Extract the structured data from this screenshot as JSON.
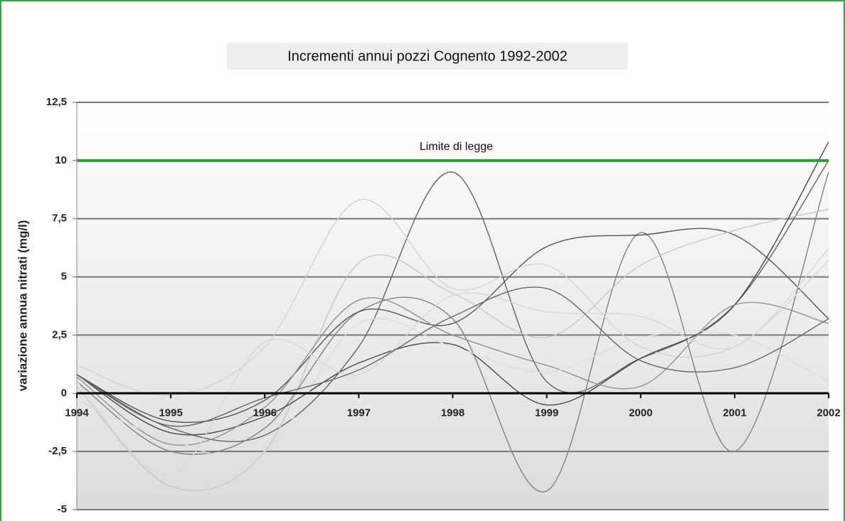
{
  "chart_data": {
    "type": "line",
    "title": "Incrementi annui pozzi Cognento 1992-2002",
    "y_label": "variazione annua nitrati (mg/l)",
    "x": [
      1994,
      1995,
      1996,
      1997,
      1998,
      1999,
      2000,
      2001,
      2002
    ],
    "xlim": [
      1994,
      2002
    ],
    "xticks": [
      1994,
      1995,
      1996,
      1997,
      1998,
      1999,
      2000,
      2001,
      2002
    ],
    "ylim": [
      -5,
      12.5
    ],
    "yticks": [
      {
        "value": -5,
        "label": "-5"
      },
      {
        "value": -2.5,
        "label": "-2,5"
      },
      0,
      {
        "value": 2.5,
        "label": "2,5"
      },
      5,
      {
        "value": 7.5,
        "label": "7,5"
      },
      10,
      {
        "value": 12.5,
        "label": "12,5"
      }
    ],
    "grid": true,
    "smooth": true,
    "reference_line": {
      "label": "Limite di legge",
      "value": 10,
      "color": "#2e9e3a"
    },
    "series": [
      {
        "color": "#6b5f5f",
        "values": [
          0.8,
          -1.5,
          -1.8,
          2.0,
          9.5,
          0.5,
          1.5,
          3.8,
          10.0
        ]
      },
      {
        "color": "#8a7d7d",
        "values": [
          0.5,
          -2.5,
          -1.5,
          3.5,
          3.2,
          -4.2,
          6.9,
          -2.5,
          9.5
        ]
      },
      {
        "color": "#5e5252",
        "values": [
          0.8,
          -1.2,
          -0.3,
          3.5,
          3.0,
          6.3,
          6.8,
          6.8,
          3.2
        ]
      },
      {
        "color": "#d8d2d2",
        "values": [
          1.2,
          -0.1,
          2.0,
          8.3,
          4.5,
          5.5,
          2.0,
          2.0,
          5.7
        ]
      },
      {
        "color": "#cdc6c6",
        "values": [
          0.3,
          -4.0,
          -2.5,
          5.6,
          4.3,
          2.4,
          5.5,
          7.0,
          7.9
        ]
      },
      {
        "color": "#4e4444",
        "values": [
          0.8,
          -1.7,
          -1.0,
          1.3,
          2.1,
          -0.5,
          1.5,
          3.8,
          10.8
        ]
      },
      {
        "color": "#9a8e8e",
        "values": [
          0.7,
          -2.2,
          -0.6,
          4.0,
          2.5,
          1.2,
          0.3,
          3.8,
          3.0
        ]
      },
      {
        "color": "#dcd6d6",
        "values": [
          0.5,
          -3.5,
          2.2,
          0.8,
          4.2,
          3.5,
          3.3,
          2.0,
          6.2
        ]
      },
      {
        "color": "#e2dcdc",
        "values": [
          -0.3,
          -2.0,
          -2.5,
          3.0,
          2.0,
          0.9,
          2.4,
          2.5,
          0.5
        ]
      },
      {
        "color": "#716565",
        "values": [
          0.8,
          -1.4,
          -0.2,
          1.0,
          3.3,
          4.5,
          1.4,
          1.1,
          3.2
        ]
      }
    ]
  }
}
